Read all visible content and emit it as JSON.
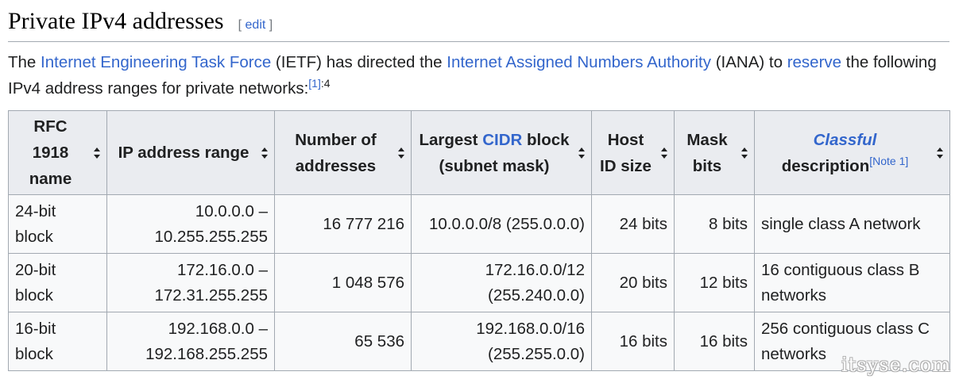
{
  "section": {
    "title": "Private IPv4 addresses",
    "edit_open": "[",
    "edit_label": "edit",
    "edit_close": "]"
  },
  "intro": {
    "t1": "The ",
    "link_ietf": "Internet Engineering Task Force",
    "t2": " (IETF) has directed the ",
    "link_iana": "Internet Assigned Numbers Authority",
    "t3": " (IANA) to ",
    "link_reserve": "reserve",
    "t4": " the following IPv4 address ranges for private networks:",
    "ref": "[1]",
    "ref_page": ":4"
  },
  "table": {
    "headers": {
      "rfc": [
        "RFC",
        "1918",
        "name"
      ],
      "range": "IP address range",
      "count": [
        "Number of",
        "addresses"
      ],
      "cidr_pre": "Largest ",
      "cidr_link": "CIDR",
      "cidr_post": " block",
      "cidr_line2": "(subnet mask)",
      "host": [
        "Host",
        "ID size"
      ],
      "mask": [
        "Mask",
        "bits"
      ],
      "classful": "Classful",
      "desc": "description",
      "note": "[Note 1]"
    },
    "rows": [
      {
        "name": [
          "24-bit",
          "block"
        ],
        "range": [
          "10.0.0.0 –",
          "10.255.255.255"
        ],
        "count": "16 777 216",
        "cidr": [
          "10.0.0.0/8 (255.0.0.0)"
        ],
        "host": "24 bits",
        "mask": "8 bits",
        "desc": [
          "single class A network"
        ]
      },
      {
        "name": [
          "20-bit",
          "block"
        ],
        "range": [
          "172.16.0.0 –",
          "172.31.255.255"
        ],
        "count": "1 048 576",
        "cidr": [
          "172.16.0.0/12",
          "(255.240.0.0)"
        ],
        "host": "20 bits",
        "mask": "12 bits",
        "desc": [
          "16 contiguous class B",
          "networks"
        ]
      },
      {
        "name": [
          "16-bit",
          "block"
        ],
        "range": [
          "192.168.0.0 –",
          "192.168.255.255"
        ],
        "count": "65 536",
        "cidr": [
          "192.168.0.0/16",
          "(255.255.0.0)"
        ],
        "host": "16 bits",
        "mask": "16 bits",
        "desc": [
          "256 contiguous class C",
          "networks"
        ]
      }
    ]
  },
  "watermark": "itsyse.com"
}
